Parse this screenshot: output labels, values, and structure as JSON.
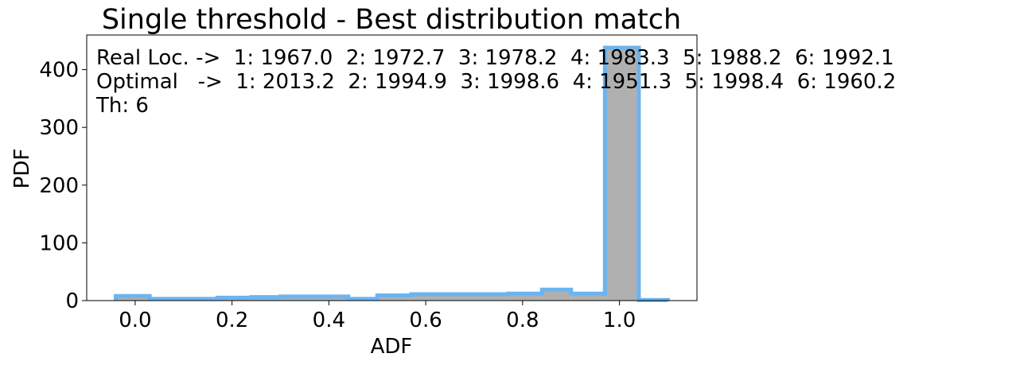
{
  "chart_data": {
    "type": "bar",
    "title": "Single threshold - Best distribution match",
    "xlabel": "ADF",
    "ylabel": "PDF",
    "xlim": [
      -0.1,
      1.16
    ],
    "ylim": [
      0,
      460
    ],
    "xticks": [
      0.0,
      0.2,
      0.4,
      0.6,
      0.8,
      1.0
    ],
    "xtick_labels": [
      "0.0",
      "0.2",
      "0.4",
      "0.6",
      "0.8",
      "1.0"
    ],
    "yticks": [
      0,
      100,
      200,
      300,
      400
    ],
    "ytick_labels": [
      "0",
      "100",
      "200",
      "300",
      "400"
    ],
    "grid": false,
    "series": [
      {
        "kind": "filled-histogram",
        "color": "#b0b0b0",
        "bins": [
          {
            "x0": -0.04,
            "x1": 0.03,
            "value": 6
          },
          {
            "x0": 0.03,
            "x1": 0.1,
            "value": 3
          },
          {
            "x0": 0.1,
            "x1": 0.17,
            "value": 3
          },
          {
            "x0": 0.17,
            "x1": 0.24,
            "value": 4
          },
          {
            "x0": 0.24,
            "x1": 0.3,
            "value": 5
          },
          {
            "x0": 0.3,
            "x1": 0.37,
            "value": 8
          },
          {
            "x0": 0.37,
            "x1": 0.44,
            "value": 7
          },
          {
            "x0": 0.44,
            "x1": 0.5,
            "value": 3
          },
          {
            "x0": 0.5,
            "x1": 0.57,
            "value": 7
          },
          {
            "x0": 0.57,
            "x1": 0.64,
            "value": 9
          },
          {
            "x0": 0.64,
            "x1": 0.7,
            "value": 9
          },
          {
            "x0": 0.7,
            "x1": 0.77,
            "value": 8
          },
          {
            "x0": 0.77,
            "x1": 0.84,
            "value": 9
          },
          {
            "x0": 0.84,
            "x1": 0.9,
            "value": 17
          },
          {
            "x0": 0.9,
            "x1": 0.97,
            "value": 10
          },
          {
            "x0": 0.97,
            "x1": 1.04,
            "value": 438
          },
          {
            "x0": 1.04,
            "x1": 1.1,
            "value": 1
          }
        ]
      },
      {
        "kind": "step-histogram",
        "color": "#6ab4f0",
        "bins": [
          {
            "x0": -0.04,
            "x1": 0.03,
            "value": 8
          },
          {
            "x0": 0.03,
            "x1": 0.1,
            "value": 3
          },
          {
            "x0": 0.1,
            "x1": 0.17,
            "value": 3
          },
          {
            "x0": 0.17,
            "x1": 0.24,
            "value": 5
          },
          {
            "x0": 0.24,
            "x1": 0.3,
            "value": 6
          },
          {
            "x0": 0.3,
            "x1": 0.37,
            "value": 7
          },
          {
            "x0": 0.37,
            "x1": 0.44,
            "value": 7
          },
          {
            "x0": 0.44,
            "x1": 0.5,
            "value": 3
          },
          {
            "x0": 0.5,
            "x1": 0.57,
            "value": 9
          },
          {
            "x0": 0.57,
            "x1": 0.64,
            "value": 11
          },
          {
            "x0": 0.64,
            "x1": 0.7,
            "value": 11
          },
          {
            "x0": 0.7,
            "x1": 0.77,
            "value": 11
          },
          {
            "x0": 0.77,
            "x1": 0.84,
            "value": 12
          },
          {
            "x0": 0.84,
            "x1": 0.9,
            "value": 19
          },
          {
            "x0": 0.9,
            "x1": 0.97,
            "value": 12
          },
          {
            "x0": 0.97,
            "x1": 1.04,
            "value": 438
          },
          {
            "x0": 1.04,
            "x1": 1.1,
            "value": 1
          }
        ]
      }
    ],
    "annotations": [
      "Real Loc. ->  1: 1967.0  2: 1972.7  3: 1978.2  4: 1983.3  5: 1988.2  6: 1992.1",
      "Optimal   ->  1: 2013.2  2: 1994.9  3: 1998.6  4: 1951.3  5: 1998.4  6: 1960.2",
      "Th: 6"
    ]
  }
}
